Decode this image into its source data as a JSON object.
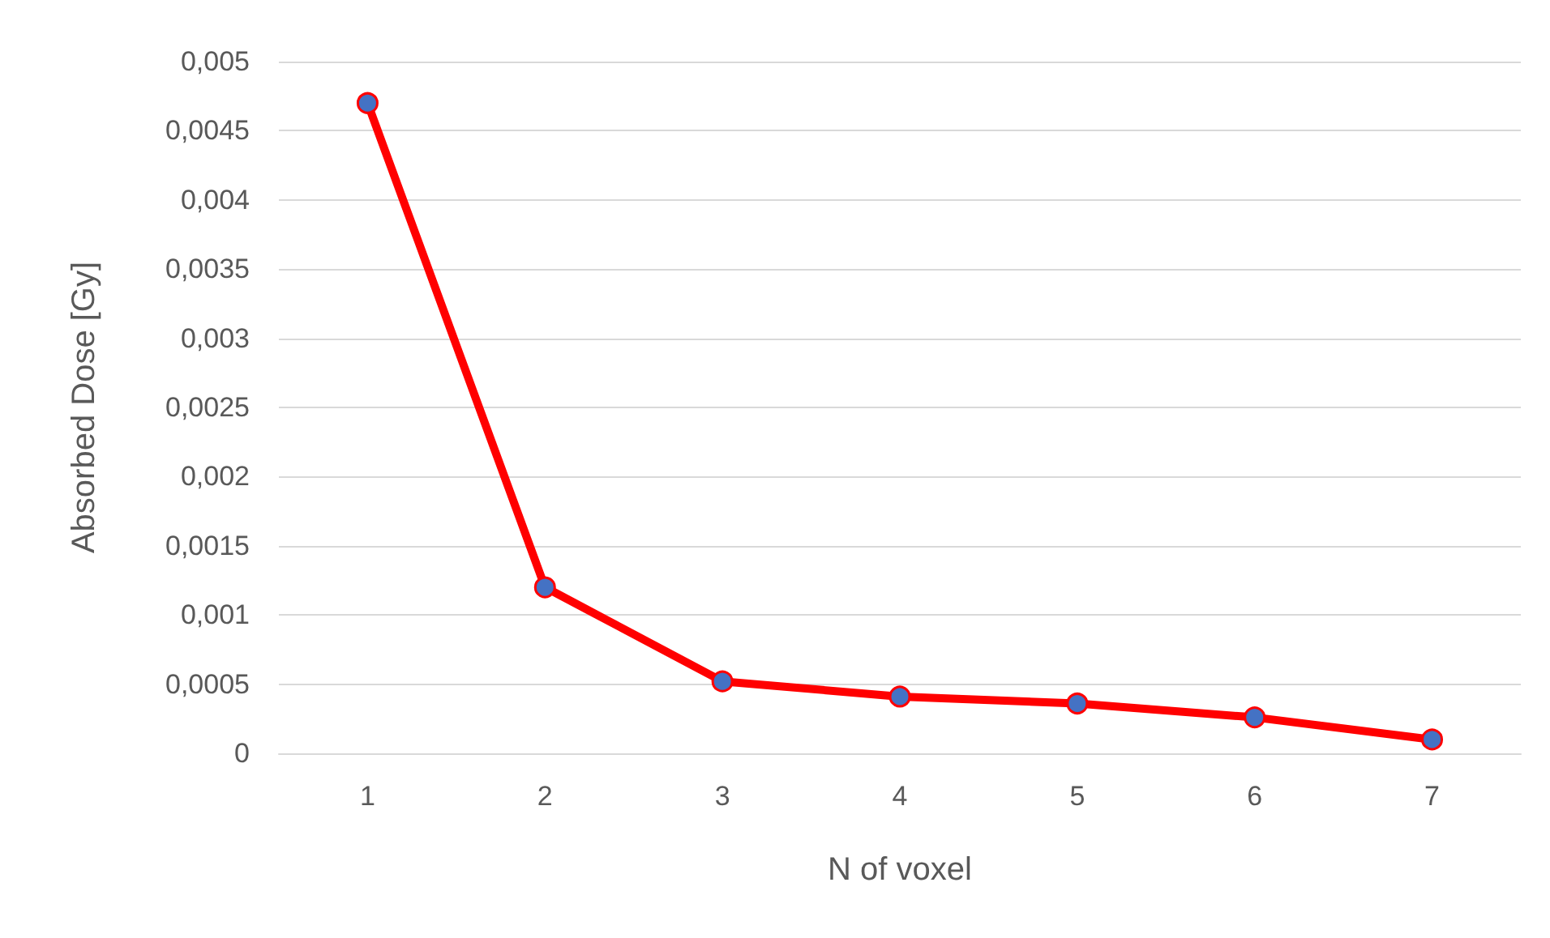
{
  "chart_data": {
    "type": "line",
    "xlabel": "N of voxel",
    "ylabel": "Absorbed Dose [Gy]",
    "categories": [
      "1",
      "2",
      "3",
      "4",
      "5",
      "6",
      "7"
    ],
    "series": [
      {
        "color": "#ff0000",
        "values": [
          0.0047,
          0.0012,
          0.00052,
          0.00041,
          0.00036,
          0.00026,
          0.0001
        ]
      }
    ],
    "ylim": [
      0,
      0.005
    ],
    "yticks": [
      0,
      {
        "value": 0.0005,
        "label": "0,0005"
      },
      {
        "value": 0.001,
        "label": "0,001"
      },
      {
        "value": 0.0015,
        "label": "0,0015"
      },
      {
        "value": 0.002,
        "label": "0,002"
      },
      {
        "value": 0.0025,
        "label": "0,0025"
      },
      {
        "value": 0.003,
        "label": "0,003"
      },
      {
        "value": 0.0035,
        "label": "0,0035"
      },
      {
        "value": 0.004,
        "label": "0,004"
      },
      {
        "value": 0.0045,
        "label": "0,0045"
      },
      {
        "value": 0.005,
        "label": "0,005"
      }
    ],
    "grid": "y",
    "marker": "circle",
    "line_style": "solid"
  }
}
